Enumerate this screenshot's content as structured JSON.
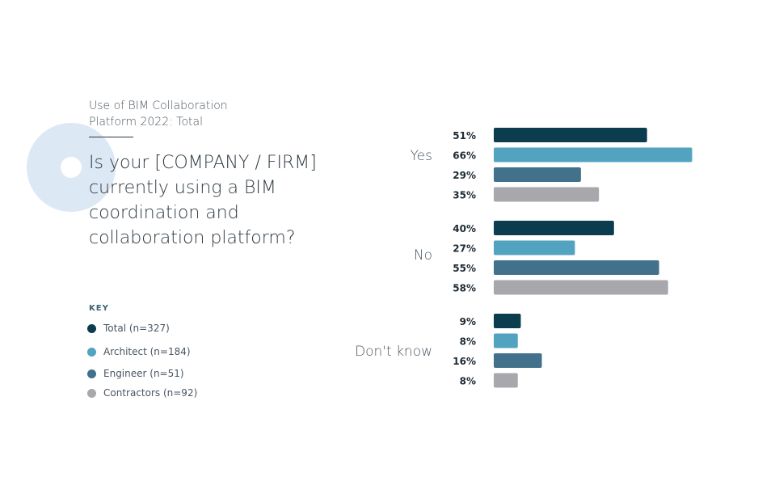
{
  "header": {
    "subtitle": "Use of BIM Collaboration Platform 2022: Total",
    "question": "Is your [COMPANY / FIRM] currently using a BIM coordination and collaboration platform?"
  },
  "key": {
    "title": "KEY",
    "items": [
      {
        "label": "Total (n=327)",
        "color": "#0b3d4f"
      },
      {
        "label": "Architect (n=184)",
        "color": "#52a3bf"
      },
      {
        "label": "Engineer (n=51)",
        "color": "#41718b"
      },
      {
        "label": "Contractors (n=92)",
        "color": "#a8a8ac"
      }
    ]
  },
  "chart_data": {
    "type": "bar",
    "orientation": "horizontal",
    "value_unit": "%",
    "categories": [
      "Yes",
      "No",
      "Don't know"
    ],
    "series": [
      {
        "name": "Total (n=327)",
        "color": "#0b3d4f",
        "values": [
          51,
          40,
          9
        ]
      },
      {
        "name": "Architect (n=184)",
        "color": "#52a3bf",
        "values": [
          66,
          27,
          8
        ]
      },
      {
        "name": "Engineer (n=51)",
        "color": "#41718b",
        "values": [
          29,
          55,
          16
        ]
      },
      {
        "name": "Contractors (n=92)",
        "color": "#a8a8ac",
        "values": [
          35,
          58,
          8
        ]
      }
    ],
    "grid": false,
    "legend": "bottom-left"
  }
}
